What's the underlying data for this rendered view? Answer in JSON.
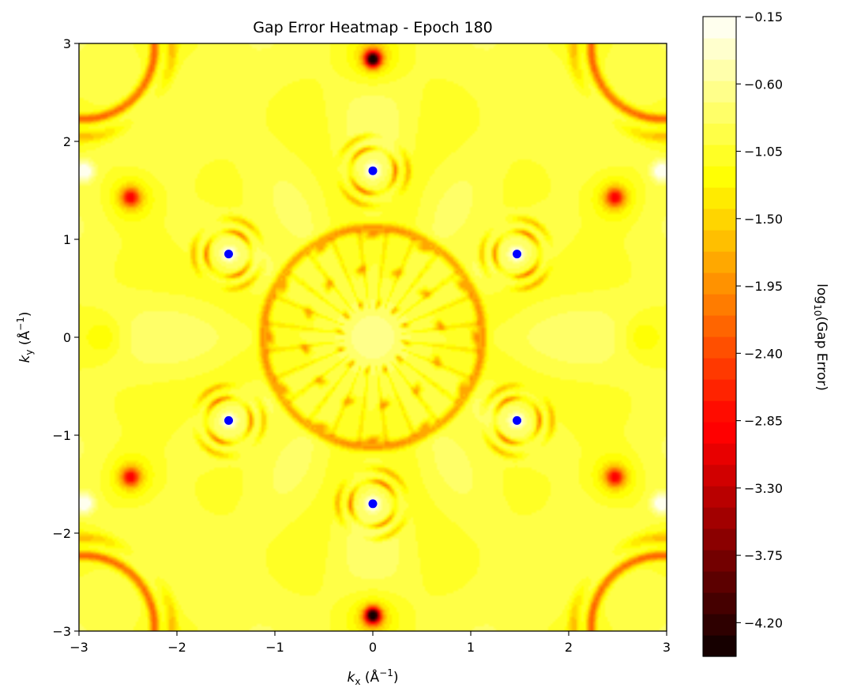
{
  "chart_data": {
    "type": "heatmap",
    "title": "Gap Error Heatmap - Epoch 180",
    "xlabel": {
      "symbol": "k",
      "sub": "x",
      "unit_open": " (Å",
      "unit_exp": "−1",
      "unit_close": ")"
    },
    "ylabel": {
      "symbol": "k",
      "sub": "y",
      "unit_open": " (Å",
      "unit_exp": "−1",
      "unit_close": ")"
    },
    "xlim": [
      -3,
      3
    ],
    "ylim": [
      -3,
      3
    ],
    "xticks": [
      -3,
      -2,
      -1,
      0,
      1,
      2,
      3
    ],
    "yticks": [
      -3,
      -2,
      -1,
      0,
      1,
      2,
      3
    ],
    "xtick_labels": [
      "−3",
      "−2",
      "−1",
      "0",
      "1",
      "2",
      "3"
    ],
    "ytick_labels": [
      "−3",
      "−2",
      "−1",
      "0",
      "1",
      "2",
      "3"
    ],
    "colormap": "hot",
    "colorbar": {
      "label_prefix": "log",
      "label_sub": "10",
      "label_suffix": "(Gap Error)",
      "vmin": -4.425,
      "vmax": -0.15,
      "levels": 30,
      "ticks": [
        -0.15,
        -0.6,
        -1.05,
        -1.5,
        -1.95,
        -2.4,
        -2.85,
        -3.3,
        -3.75,
        -4.2
      ],
      "tick_labels": [
        "−0.15",
        "−0.60",
        "−1.05",
        "−1.50",
        "−1.95",
        "−2.40",
        "−2.85",
        "−3.30",
        "−3.75",
        "−4.20"
      ]
    },
    "markers": {
      "color": "#0000ff",
      "points": [
        {
          "x": 0,
          "y": 1.7
        },
        {
          "x": 1.472,
          "y": 0.85
        },
        {
          "x": 1.472,
          "y": -0.85
        },
        {
          "x": 0,
          "y": -1.7
        },
        {
          "x": -1.472,
          "y": -0.85
        },
        {
          "x": -1.472,
          "y": 0.85
        }
      ]
    }
  }
}
